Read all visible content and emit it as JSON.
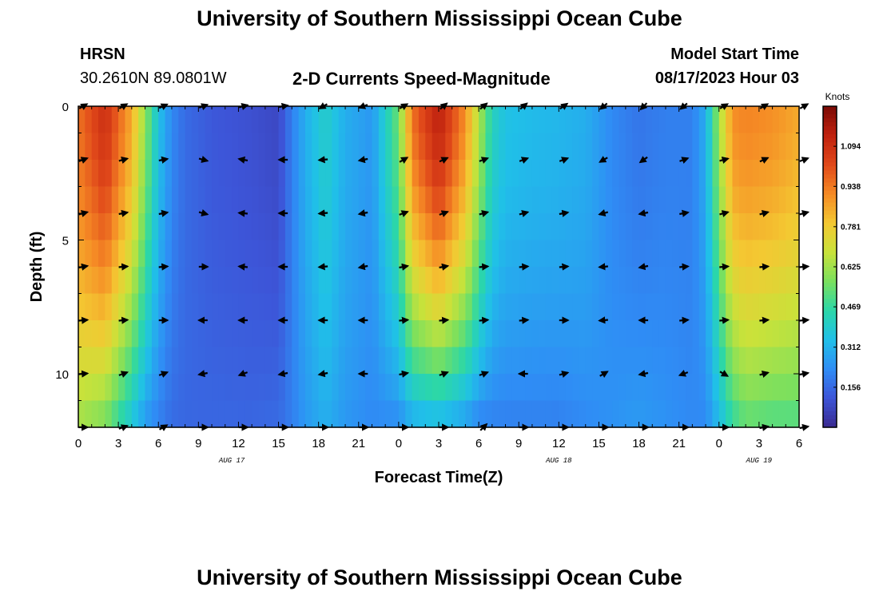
{
  "page": {
    "title": "University of Southern Mississippi Ocean Cube",
    "title_bottom": "University of Southern Mississippi Ocean Cube"
  },
  "header": {
    "station": "HRSN",
    "coords": "30.2610N  89.0801W",
    "chart_title": "2-D Currents Speed-Magnitude",
    "model_start_label": "Model Start Time",
    "model_start_value": "08/17/2023 Hour 03"
  },
  "colorbar": {
    "units": "Knots",
    "ticks": [
      "1.094",
      "0.938",
      "0.781",
      "0.625",
      "0.469",
      "0.312",
      "0.156"
    ],
    "tick_values": [
      1.094,
      0.938,
      0.781,
      0.625,
      0.469,
      0.312,
      0.156
    ],
    "range": [
      0.0,
      1.25
    ],
    "colors": [
      "#3a2a90",
      "#3d55d8",
      "#2f8df5",
      "#20c0e8",
      "#2bd7a8",
      "#7be05e",
      "#c9e23a",
      "#f4c832",
      "#f58a25",
      "#e0481a",
      "#c0220f",
      "#7a0a05"
    ]
  },
  "chart_data": {
    "type": "heatmap",
    "title": "2-D Currents Speed-Magnitude",
    "xlabel": "Forecast Time(Z)",
    "ylabel": "Depth (ft)",
    "units": "Knots",
    "x_hours_range": [
      0,
      54
    ],
    "depth_range_ft": [
      0,
      12
    ],
    "y_axis_inverted": true,
    "x_tick_labels": [
      "0",
      "3",
      "6",
      "9",
      "12",
      "15",
      "18",
      "21",
      "0",
      "3",
      "6",
      "9",
      "12",
      "15",
      "18",
      "21",
      "0",
      "3",
      "6"
    ],
    "x_tick_hours": [
      0,
      3,
      6,
      9,
      12,
      15,
      18,
      21,
      24,
      27,
      30,
      33,
      36,
      39,
      42,
      45,
      48,
      51,
      54
    ],
    "y_tick_labels": [
      "0",
      "5",
      "10"
    ],
    "y_tick_values": [
      0,
      5,
      10
    ],
    "date_labels": [
      {
        "text": "AUG 17",
        "hour": 11.5
      },
      {
        "text": "AUG 18",
        "hour": 36
      },
      {
        "text": "AUG 19",
        "hour": 51
      }
    ],
    "speed_profile_hours": [
      0,
      2,
      4,
      5,
      6,
      7,
      8,
      10,
      13,
      15,
      16,
      17,
      18.5,
      20,
      22,
      24,
      25,
      27,
      29,
      30,
      31,
      32,
      34,
      36,
      38,
      40,
      42,
      44,
      46,
      47,
      48,
      49,
      50,
      52,
      54
    ],
    "speed_profile_surface": [
      0.95,
      1.1,
      0.85,
      0.6,
      0.35,
      0.22,
      0.16,
      0.12,
      0.1,
      0.08,
      0.2,
      0.3,
      0.4,
      0.3,
      0.25,
      0.55,
      0.95,
      1.15,
      0.9,
      0.65,
      0.42,
      0.35,
      0.33,
      0.32,
      0.3,
      0.22,
      0.18,
      0.2,
      0.2,
      0.3,
      0.62,
      0.9,
      0.92,
      0.9,
      0.85
    ],
    "speed_profile_bottom": [
      0.62,
      0.55,
      0.35,
      0.25,
      0.2,
      0.16,
      0.15,
      0.15,
      0.15,
      0.16,
      0.2,
      0.25,
      0.3,
      0.25,
      0.22,
      0.22,
      0.28,
      0.3,
      0.25,
      0.2,
      0.2,
      0.2,
      0.2,
      0.2,
      0.22,
      0.24,
      0.26,
      0.24,
      0.22,
      0.22,
      0.32,
      0.45,
      0.52,
      0.5,
      0.5
    ],
    "vector_rows_depth_ft": [
      0,
      2,
      4,
      6,
      8,
      10,
      12
    ],
    "vector_cols_hour": [
      0,
      3,
      6,
      9,
      12,
      15,
      18,
      21,
      24,
      27,
      30,
      33,
      36,
      39,
      42,
      45,
      48,
      51,
      54
    ],
    "vector_direction_deg": [
      [
        30,
        30,
        25,
        20,
        15,
        10,
        210,
        200,
        30,
        40,
        40,
        40,
        35,
        220,
        225,
        220,
        30,
        30,
        30
      ],
      [
        20,
        15,
        10,
        345,
        170,
        180,
        185,
        190,
        30,
        25,
        20,
        20,
        20,
        210,
        215,
        20,
        15,
        25,
        20
      ],
      [
        15,
        10,
        10,
        345,
        175,
        180,
        185,
        190,
        20,
        20,
        15,
        15,
        10,
        195,
        190,
        10,
        15,
        15,
        15
      ],
      [
        10,
        5,
        5,
        0,
        175,
        180,
        185,
        190,
        10,
        10,
        5,
        5,
        5,
        185,
        190,
        5,
        5,
        5,
        5
      ],
      [
        5,
        5,
        0,
        180,
        180,
        180,
        180,
        180,
        5,
        5,
        5,
        5,
        0,
        185,
        180,
        5,
        5,
        5,
        5
      ],
      [
        5,
        20,
        20,
        190,
        200,
        190,
        190,
        180,
        10,
        20,
        20,
        180,
        15,
        30,
        190,
        200,
        330,
        15,
        10
      ],
      [
        0,
        20,
        30,
        0,
        0,
        0,
        0,
        0,
        0,
        0,
        45,
        0,
        0,
        0,
        0,
        0,
        0,
        10,
        10
      ]
    ]
  }
}
